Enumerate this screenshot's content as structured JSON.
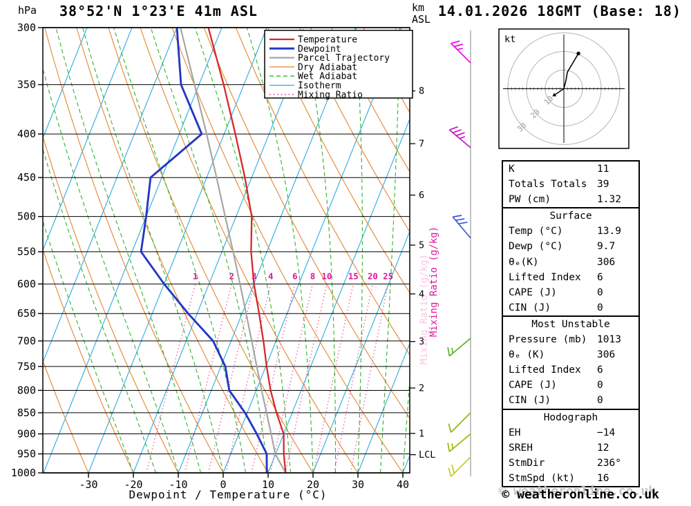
{
  "header": {
    "pressure_unit": "hPa",
    "station": "38°52'N 1°23'E 41m ASL",
    "altitude_unit_line1": "km",
    "altitude_unit_line2": "ASL",
    "datetime": "14.01.2026 18GMT (Base: 18)"
  },
  "axes": {
    "xlabel": "Dewpoint / Temperature (°C)",
    "mixing_ratio_label": "Mixing Ratio (g/kg)",
    "lcl_label": "LCL"
  },
  "legend": [
    {
      "label": "Temperature",
      "series": "temperature"
    },
    {
      "label": "Dewpoint",
      "series": "dewpoint"
    },
    {
      "label": "Parcel Trajectory",
      "series": "parcel"
    },
    {
      "label": "Dry Adiabat",
      "series": "dry_adiabat"
    },
    {
      "label": "Wet Adiabat",
      "series": "wet_adiabat"
    },
    {
      "label": "Isotherm",
      "series": "isotherm"
    },
    {
      "label": "Mixing Ratio",
      "series": "mixing_ratio"
    }
  ],
  "colors": {
    "temperature": "#d62728",
    "dewpoint": "#2337c6",
    "parcel": "#a6a6a6",
    "dry_adiabat": "#e2862e",
    "wet_adiabat": "#2db32d",
    "isotherm": "#2aabdf",
    "mixing_ratio": "#ef5fa7",
    "mixing_ratio_label": "#e015a0",
    "barb_column_line": "#9a9a9a",
    "hodograph_rings": "#b3b3b3"
  },
  "chart_data": {
    "type": "line",
    "chart_kind": "skew-T log-P thermodynamic sounding",
    "x_axis_ticks_C": [
      -30,
      -20,
      -10,
      0,
      10,
      20,
      30,
      40
    ],
    "pressure_ticks_hPa": [
      300,
      350,
      400,
      450,
      500,
      550,
      600,
      650,
      700,
      750,
      800,
      850,
      900,
      950,
      1000
    ],
    "km_ticks": [
      1,
      2,
      3,
      4,
      5,
      6,
      7,
      8
    ],
    "mixing_ratio_lines_g_kg": [
      1,
      2,
      3,
      4,
      6,
      8,
      10,
      15,
      20,
      25
    ],
    "pressure_hPa": [
      1000,
      950,
      900,
      850,
      800,
      750,
      700,
      650,
      600,
      550,
      500,
      450,
      400,
      350,
      300
    ],
    "temperature_C": [
      13.9,
      11.8,
      10.0,
      6.5,
      3.2,
      0.2,
      -2.8,
      -6.2,
      -10.0,
      -13.5,
      -16.5,
      -21.5,
      -27.5,
      -34.5,
      -43.0
    ],
    "dewpoint_C": [
      9.7,
      8.0,
      4.0,
      -0.5,
      -6.0,
      -9.0,
      -14.0,
      -22.0,
      -30.0,
      -38.0,
      -40.0,
      -42.5,
      -35.0,
      -44.0,
      -50.0
    ],
    "parcel_C": [
      13.9,
      9.9,
      7.2,
      4.3,
      1.2,
      -2.0,
      -5.4,
      -9.1,
      -13.1,
      -17.5,
      -22.4,
      -27.8,
      -33.9,
      -41.0,
      -49.2
    ],
    "lcl_hPa": 952
  },
  "wind_barbs": [
    {
      "p_hPa": 330,
      "from_deg": 315,
      "speed_kt": 25,
      "color": "#f000f0"
    },
    {
      "p_hPa": 415,
      "from_deg": 310,
      "speed_kt": 35,
      "color": "#c413c4"
    },
    {
      "p_hPa": 530,
      "from_deg": 320,
      "speed_kt": 30,
      "color": "#3c50e0"
    },
    {
      "p_hPa": 695,
      "from_deg": 230,
      "speed_kt": 15,
      "color": "#58b428"
    },
    {
      "p_hPa": 850,
      "from_deg": 225,
      "speed_kt": 10,
      "color": "#8cb414"
    },
    {
      "p_hPa": 900,
      "from_deg": 230,
      "speed_kt": 15,
      "color": "#a4b400"
    },
    {
      "p_hPa": 958,
      "from_deg": 225,
      "speed_kt": 20,
      "color": "#c8c81e"
    }
  ],
  "hodograph": {
    "unit_label": "kt",
    "rings_kt": [
      10,
      20,
      30
    ],
    "trace_kt": [
      [
        0,
        0
      ],
      [
        1.1,
        4.4
      ],
      [
        1.9,
        8.9
      ],
      [
        7.8,
        18.9
      ]
    ],
    "storm_motion": {
      "dir_deg": 236,
      "speed_kt": 16
    }
  },
  "table": {
    "sections": [
      {
        "rows": [
          [
            "K",
            "11"
          ],
          [
            "Totals Totals",
            "39"
          ],
          [
            "PW (cm)",
            "1.32"
          ]
        ]
      },
      {
        "header": "Surface",
        "rows": [
          [
            "Temp (°C)",
            "13.9"
          ],
          [
            "Dewp (°C)",
            "9.7"
          ],
          [
            "θₑ(K)",
            "306"
          ],
          [
            "Lifted Index",
            "6"
          ],
          [
            "CAPE (J)",
            "0"
          ],
          [
            "CIN (J)",
            "0"
          ]
        ]
      },
      {
        "header": "Most Unstable",
        "rows": [
          [
            "Pressure (mb)",
            "1013"
          ],
          [
            "θₑ (K)",
            "306"
          ],
          [
            "Lifted Index",
            "6"
          ],
          [
            "CAPE (J)",
            "0"
          ],
          [
            "CIN (J)",
            "0"
          ]
        ]
      },
      {
        "header": "Hodograph",
        "rows": [
          [
            "EH",
            "−14"
          ],
          [
            "SREH",
            "12"
          ],
          [
            "StmDir",
            "236°"
          ],
          [
            "StmSpd (kt)",
            "16"
          ]
        ]
      }
    ]
  },
  "watermark": "© weatheronline.co.uk"
}
